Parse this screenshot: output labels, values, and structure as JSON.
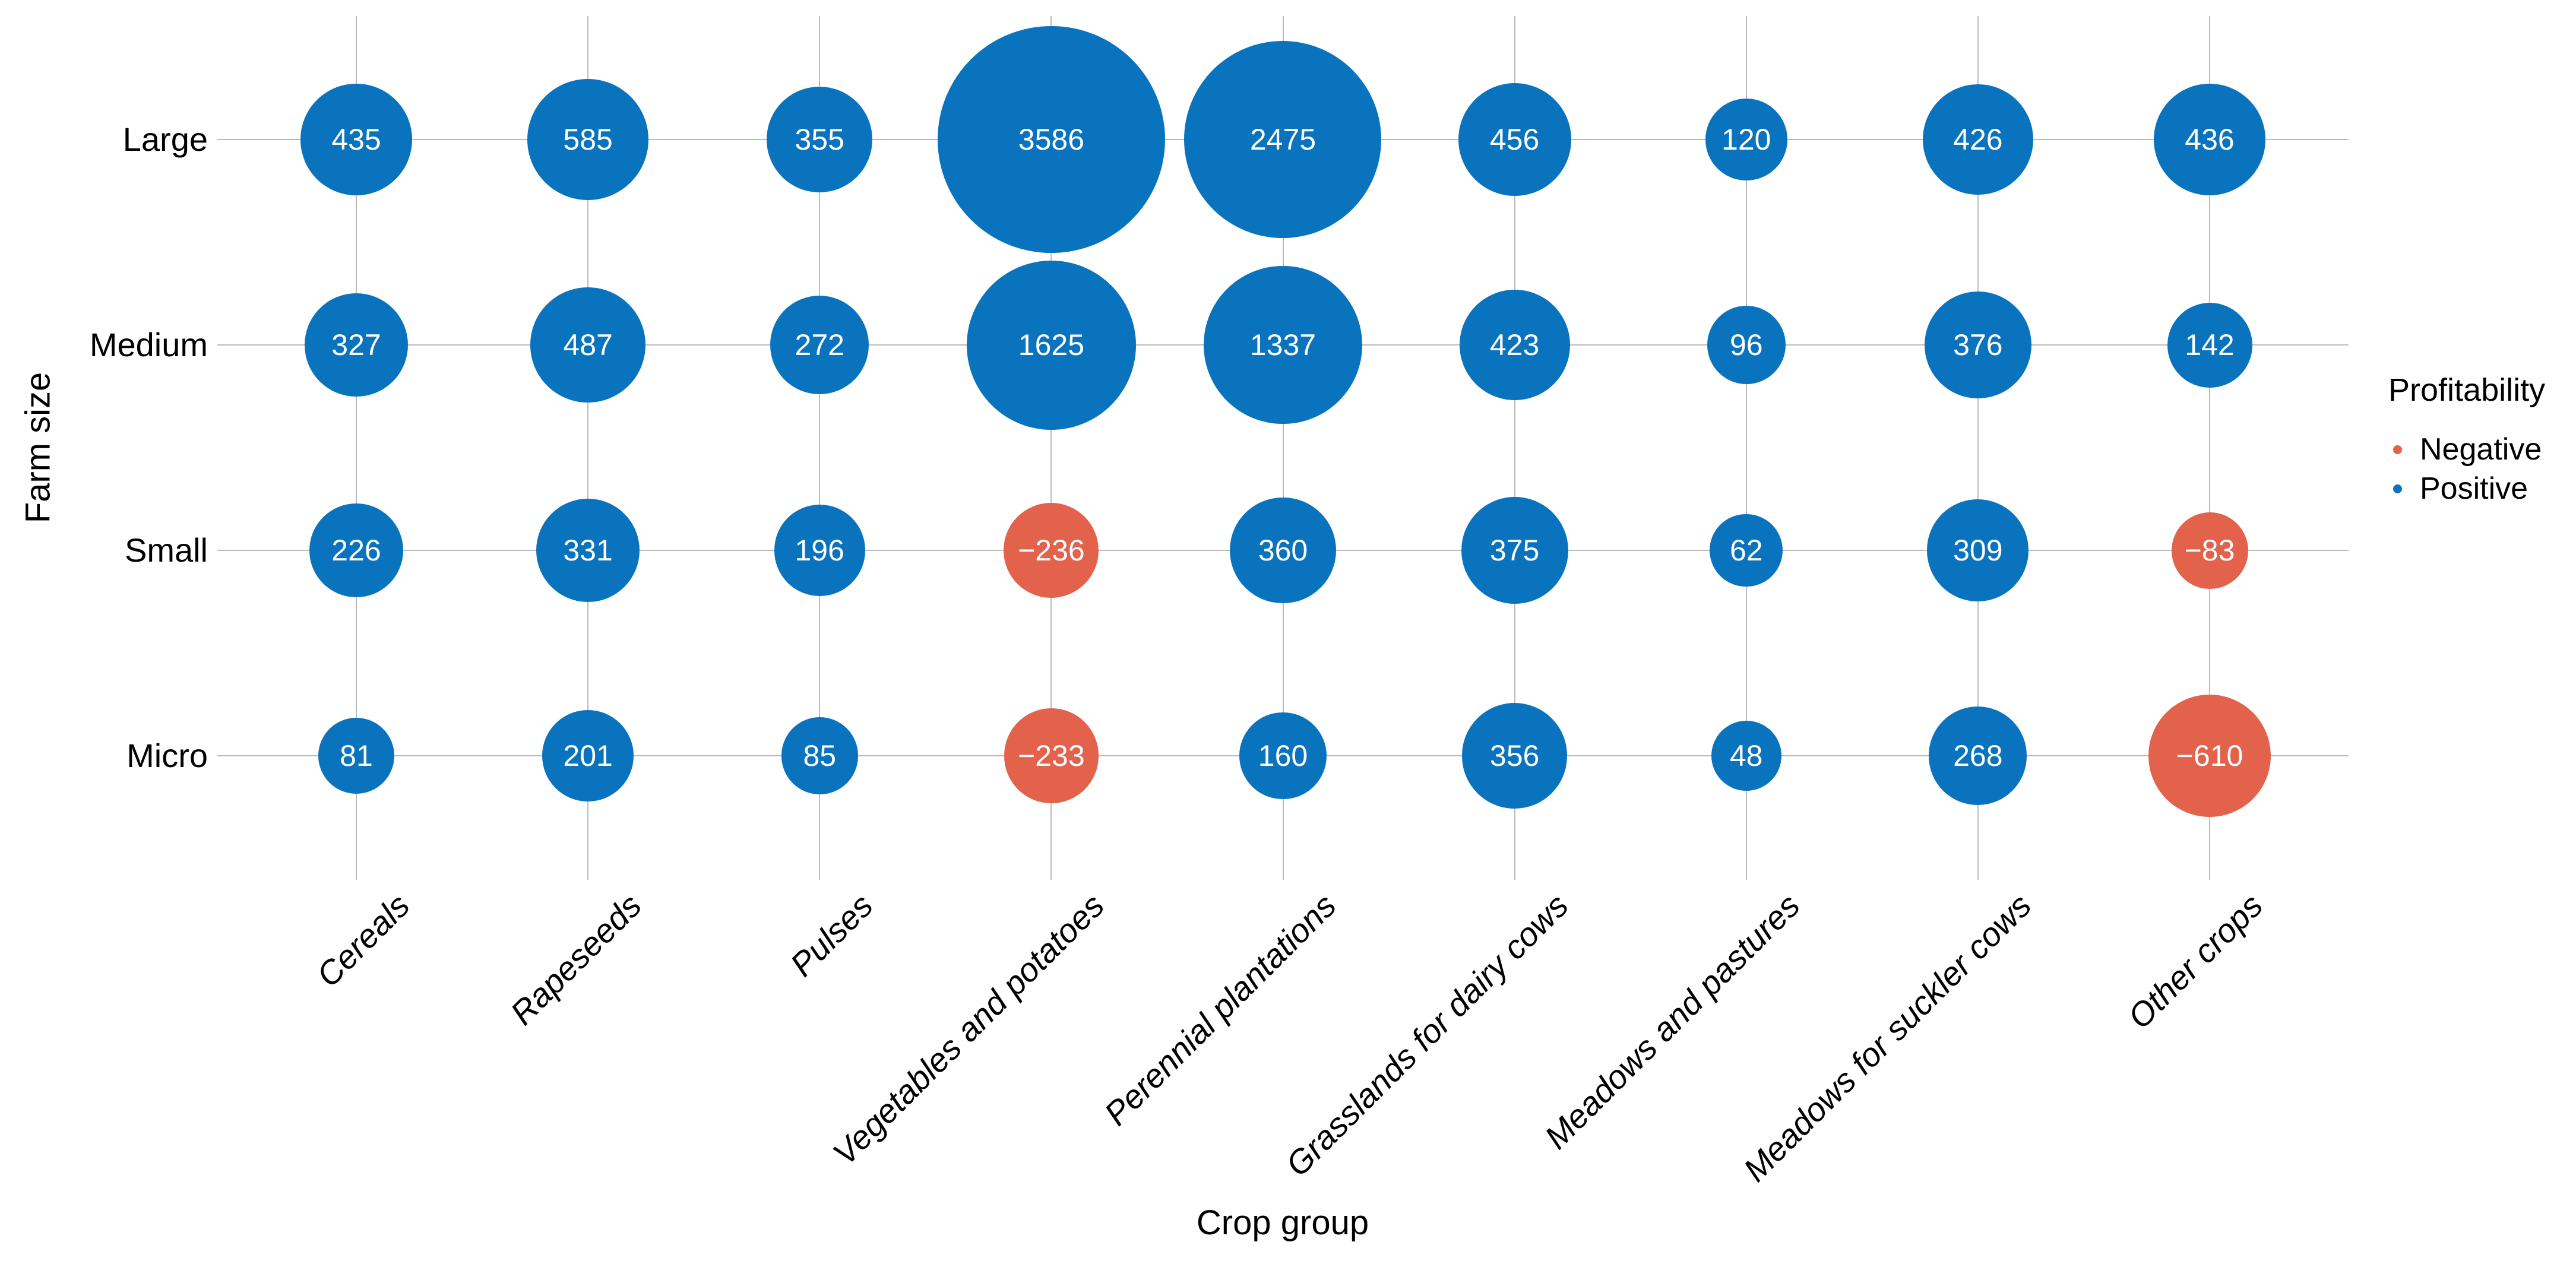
{
  "chart_data": {
    "type": "scatter",
    "variant": "bubble-grid",
    "title": "",
    "xlabel": "Crop group",
    "ylabel": "Farm size",
    "x_categories": [
      "Cereals",
      "Rapeseeds",
      "Pulses",
      "Vegetables and potatoes",
      "Perennial plantations",
      "Grasslands for dairy cows",
      "Meadows and pastures",
      "Meadows for suckler cows",
      "Other crops"
    ],
    "y_categories": [
      "Large",
      "Medium",
      "Small",
      "Micro"
    ],
    "series": [
      {
        "name": "Large",
        "values": [
          435,
          585,
          355,
          3586,
          2475,
          456,
          120,
          426,
          436
        ]
      },
      {
        "name": "Medium",
        "values": [
          327,
          487,
          272,
          1625,
          1337,
          423,
          96,
          376,
          142
        ]
      },
      {
        "name": "Small",
        "values": [
          226,
          331,
          196,
          -236,
          360,
          375,
          62,
          309,
          -83
        ]
      },
      {
        "name": "Micro",
        "values": [
          81,
          201,
          85,
          -233,
          160,
          356,
          48,
          268,
          -610
        ]
      }
    ],
    "size_encoding": "bubble radius ~ sqrt(|value|)",
    "grid": true,
    "legend_position": "right",
    "legend": {
      "title": "Profitability",
      "entries": [
        {
          "label": "Negative",
          "color": "#E2624C"
        },
        {
          "label": "Positive",
          "color": "#0A73BE"
        }
      ]
    },
    "colors": {
      "positive": "#0A73BE",
      "negative": "#E2624C",
      "grid": "#BBBBBB",
      "bubble_text": "#FFFFFF",
      "axis_text": "#000000"
    }
  }
}
